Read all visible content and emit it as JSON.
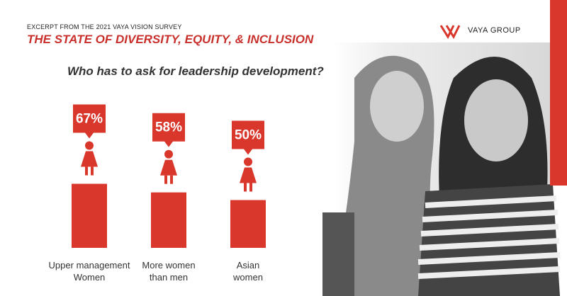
{
  "eyebrow": "EXCERPT FROM THE 2021 VAYA VISION SURVEY",
  "title": "THE STATE OF DIVERSITY, EQUITY, & INCLUSION",
  "logo": "VAYA GROUP",
  "chart_data": {
    "type": "bar",
    "title": "Who has to ask for leadership development?",
    "categories": [
      "Upper management Women",
      "More women than men",
      "Asian women"
    ],
    "values": [
      67,
      58,
      50
    ],
    "value_labels": [
      "67%",
      "58%",
      "50%"
    ],
    "color": "#d9372b"
  }
}
